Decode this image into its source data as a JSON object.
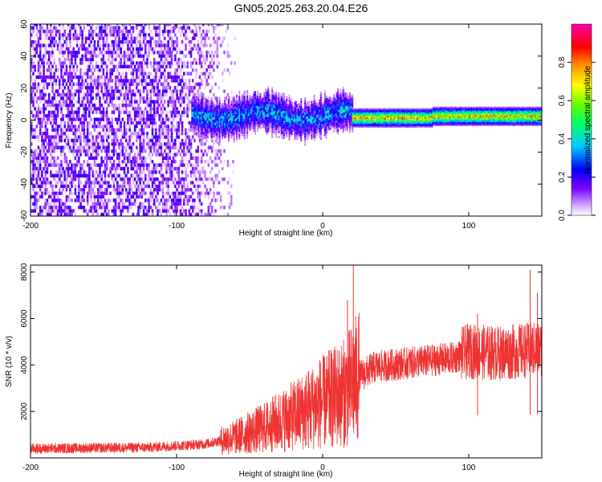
{
  "title": "GN05.2025.263.20.04.E26",
  "chart_data": [
    {
      "type": "heatmap",
      "xlabel": "Height of straight line (km)",
      "ylabel": "Frequency (Hz)",
      "xlim": [
        -200,
        150
      ],
      "ylim": [
        -60,
        60
      ],
      "xticks": [
        -200,
        -100,
        0,
        100
      ],
      "yticks": [
        -60,
        -40,
        -20,
        0,
        20,
        40,
        60
      ],
      "colorbar": {
        "label": "Normalized spectral amplitude",
        "range": [
          0,
          1
        ],
        "ticks": [
          0.0,
          0.2,
          0.4,
          0.6,
          0.8
        ],
        "colormap": [
          "#ffffff",
          "#7b00ff",
          "#0000ff",
          "#00ffff",
          "#00ff00",
          "#ffff00",
          "#ff8800",
          "#ff0000",
          "#ff00aa"
        ]
      },
      "features": [
        {
          "region": "noise",
          "x": [
            -200,
            -60
          ],
          "freq_spread": 60,
          "amplitude": 0.1
        },
        {
          "region": "transition",
          "x": [
            -90,
            20
          ],
          "center_freq": 2,
          "freq_spread": 12,
          "amplitude": 0.35
        },
        {
          "region": "signal",
          "x": [
            20,
            150
          ],
          "center_freq": 1,
          "freq_spread": 4,
          "amplitude": 0.7
        }
      ]
    },
    {
      "type": "line",
      "xlabel": "Height of straight line (km)",
      "ylabel": "SNR (10 * v/v)",
      "xlim": [
        -200,
        150
      ],
      "ylim": [
        0,
        8300
      ],
      "xticks": [
        -200,
        -100,
        0,
        100
      ],
      "yticks": [
        2000,
        4000,
        6000,
        8000
      ],
      "color": "#ee3333",
      "trend": [
        {
          "x": -200,
          "y": 400
        },
        {
          "x": -120,
          "y": 450
        },
        {
          "x": -80,
          "y": 600
        },
        {
          "x": -60,
          "y": 900
        },
        {
          "x": -40,
          "y": 1300
        },
        {
          "x": -20,
          "y": 1800
        },
        {
          "x": 0,
          "y": 2400
        },
        {
          "x": 15,
          "y": 2800
        },
        {
          "x": 25,
          "y": 3500
        },
        {
          "x": 35,
          "y": 3900
        },
        {
          "x": 60,
          "y": 4100
        },
        {
          "x": 90,
          "y": 4300
        },
        {
          "x": 100,
          "y": 4600
        },
        {
          "x": 120,
          "y": 4500
        },
        {
          "x": 150,
          "y": 4700
        }
      ],
      "peaks": [
        {
          "x": 21,
          "y": 8300
        },
        {
          "x": 17,
          "y": 6800
        },
        {
          "x": 142,
          "y": 8100
        },
        {
          "x": 147,
          "y": 7100
        },
        {
          "x": 106,
          "y": 6200
        },
        {
          "x": -2,
          "y": 4200
        }
      ]
    }
  ]
}
